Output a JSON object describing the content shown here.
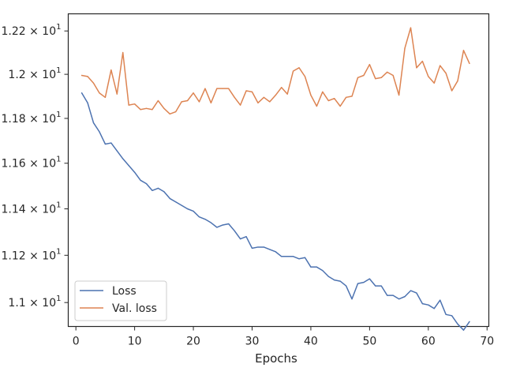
{
  "chart_data": {
    "type": "line",
    "title": "",
    "xlabel": "Epochs",
    "ylabel": "",
    "xlim": [
      -1.3,
      70.3
    ],
    "ylim": [
      10.9,
      12.28
    ],
    "y_scale": "log",
    "grid": false,
    "legend_position": "bottom-left",
    "x_ticks": [
      0,
      10,
      20,
      30,
      40,
      50,
      60,
      70
    ],
    "x_tick_labels": [
      "0",
      "10",
      "20",
      "30",
      "40",
      "50",
      "60",
      "70"
    ],
    "y_ticks": [
      11.0,
      11.2,
      11.4,
      11.6,
      11.8,
      12.0,
      12.2
    ],
    "y_tick_labels": [
      {
        "mantissa": "1.1",
        "exp": "1"
      },
      {
        "mantissa": "1.12",
        "exp": "1"
      },
      {
        "mantissa": "1.14",
        "exp": "1"
      },
      {
        "mantissa": "1.16",
        "exp": "1"
      },
      {
        "mantissa": "1.18",
        "exp": "1"
      },
      {
        "mantissa": "1.2",
        "exp": "1"
      },
      {
        "mantissa": "1.22",
        "exp": "1"
      }
    ],
    "x": [
      1,
      2,
      3,
      4,
      5,
      6,
      7,
      8,
      9,
      10,
      11,
      12,
      13,
      14,
      15,
      16,
      17,
      18,
      19,
      20,
      21,
      22,
      23,
      24,
      25,
      26,
      27,
      28,
      29,
      30,
      31,
      32,
      33,
      34,
      35,
      36,
      37,
      38,
      39,
      40,
      41,
      42,
      43,
      44,
      45,
      46,
      47,
      48,
      49,
      50,
      51,
      52,
      53,
      54,
      55,
      56,
      57,
      58,
      59,
      60,
      61,
      62,
      63,
      64,
      65,
      66,
      67
    ],
    "series": [
      {
        "name": "Loss",
        "color": "#4c72b0",
        "values": [
          11.915,
          11.87,
          11.78,
          11.74,
          11.685,
          11.69,
          11.655,
          11.62,
          11.59,
          11.56,
          11.525,
          11.51,
          11.48,
          11.49,
          11.475,
          11.445,
          11.43,
          11.415,
          11.4,
          11.39,
          11.365,
          11.355,
          11.34,
          11.32,
          11.33,
          11.335,
          11.305,
          11.27,
          11.28,
          11.23,
          11.235,
          11.235,
          11.225,
          11.215,
          11.195,
          11.195,
          11.195,
          11.185,
          11.19,
          11.15,
          11.15,
          11.135,
          11.11,
          11.095,
          11.09,
          11.07,
          11.015,
          11.08,
          11.085,
          11.1,
          11.07,
          11.07,
          11.03,
          11.03,
          11.015,
          11.025,
          11.05,
          11.04,
          10.995,
          10.99,
          10.975,
          11.01,
          10.95,
          10.945,
          10.91,
          10.885,
          10.92
        ]
      },
      {
        "name": "Val. loss",
        "color": "#dd8452",
        "values": [
          11.995,
          11.99,
          11.96,
          11.915,
          11.895,
          12.02,
          11.91,
          12.1,
          11.86,
          11.865,
          11.84,
          11.845,
          11.84,
          11.88,
          11.845,
          11.82,
          11.83,
          11.875,
          11.88,
          11.915,
          11.875,
          11.935,
          11.87,
          11.935,
          11.935,
          11.935,
          11.895,
          11.86,
          11.925,
          11.92,
          11.87,
          11.895,
          11.875,
          11.905,
          11.94,
          11.91,
          12.015,
          12.03,
          11.99,
          11.905,
          11.855,
          11.92,
          11.88,
          11.89,
          11.855,
          11.895,
          11.9,
          11.985,
          11.995,
          12.045,
          11.98,
          11.985,
          12.01,
          11.995,
          11.905,
          12.12,
          12.215,
          12.03,
          12.06,
          11.99,
          11.96,
          12.04,
          12.005,
          11.925,
          11.97,
          12.11,
          12.05
        ]
      }
    ]
  }
}
